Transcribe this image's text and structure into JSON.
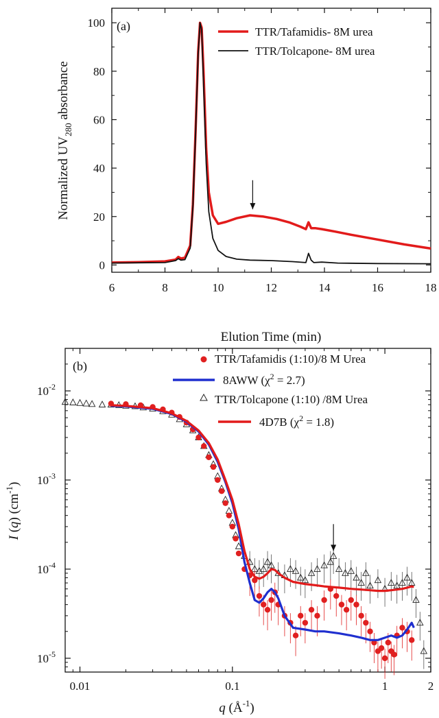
{
  "chart_data": [
    {
      "type": "line",
      "panel_label": "(a)",
      "xlabel": "Elution Time (min)",
      "ylabel": "Normalized UV280 absorbance",
      "ylabel_parts": {
        "base": "Normalized UV",
        "sub": "280",
        "rest": " absorbance"
      },
      "xlim": [
        6,
        18
      ],
      "ylim": [
        -3,
        106
      ],
      "x_ticks": [
        6,
        8,
        10,
        12,
        14,
        16,
        18
      ],
      "y_ticks": [
        0,
        20,
        40,
        60,
        80,
        100
      ],
      "grid": false,
      "legend_position": "top-right",
      "series": [
        {
          "name": "TTR/Tafamidis- 8M urea",
          "color": "#e21b1b",
          "x": [
            6.0,
            7.0,
            8.0,
            8.4,
            8.5,
            8.6,
            8.75,
            8.95,
            9.05,
            9.15,
            9.25,
            9.32,
            9.38,
            9.45,
            9.55,
            9.65,
            9.8,
            10.0,
            10.3,
            10.7,
            11.2,
            11.7,
            12.2,
            12.7,
            13.1,
            13.3,
            13.4,
            13.5,
            13.65,
            13.9,
            14.4,
            15.0,
            16.0,
            17.0,
            18.0
          ],
          "y": [
            1.0,
            1.2,
            1.5,
            2.2,
            3.3,
            2.7,
            3.0,
            8.0,
            25.0,
            55.0,
            88.0,
            100.0,
            98.0,
            80.0,
            48.0,
            30.0,
            20.5,
            17.0,
            17.8,
            19.3,
            20.5,
            20.0,
            19.0,
            17.5,
            15.8,
            14.8,
            17.6,
            15.2,
            15.2,
            14.8,
            13.8,
            12.5,
            10.5,
            8.5,
            6.8
          ]
        },
        {
          "name": "TTR/Tolcapone- 8M urea",
          "color": "#111111",
          "x": [
            6.0,
            7.0,
            8.0,
            8.4,
            8.5,
            8.6,
            8.75,
            8.95,
            9.05,
            9.15,
            9.25,
            9.32,
            9.38,
            9.45,
            9.55,
            9.65,
            9.8,
            10.0,
            10.3,
            10.7,
            11.2,
            12.0,
            12.8,
            13.3,
            13.4,
            13.5,
            13.6,
            13.9,
            14.5,
            16.0,
            18.0
          ],
          "y": [
            0.8,
            0.9,
            1.0,
            1.8,
            2.6,
            2.0,
            2.2,
            7.0,
            24.0,
            54.0,
            87.0,
            100.0,
            97.0,
            75.0,
            42.0,
            22.0,
            11.0,
            6.0,
            3.5,
            2.4,
            2.0,
            1.8,
            1.4,
            1.0,
            4.8,
            2.0,
            1.0,
            1.2,
            0.8,
            0.6,
            0.5
          ]
        }
      ],
      "annotations": [
        {
          "type": "arrow",
          "x": 11.3,
          "y_from": 35,
          "y_to": 23
        }
      ]
    },
    {
      "type": "scatter",
      "panel_label": "(b)",
      "xlabel": "q (Å⁻¹)",
      "xlabel_parts": {
        "var": "q",
        "rest": " (Å",
        "sup": "-1",
        "close": ")"
      },
      "ylabel": "I (q) (cm⁻¹)",
      "ylabel_parts": {
        "var": "I",
        "mid": " (",
        "var2": "q",
        "rest": ") (cm",
        "sup": "-1",
        "close": ")"
      },
      "x_scale": "log",
      "y_scale": "log",
      "xlim": [
        0.008,
        2.0
      ],
      "ylim": [
        7e-06,
        0.03
      ],
      "x_ticks": [
        0.01,
        0.1,
        1,
        2
      ],
      "x_tick_labels": [
        "0.01",
        "0.1",
        "1",
        "2"
      ],
      "y_ticks": [
        1e-05,
        0.0001,
        0.001,
        0.01
      ],
      "y_tick_labels": [
        {
          "base": "10",
          "sup": "-5"
        },
        {
          "base": "10",
          "sup": "-4"
        },
        {
          "base": "10",
          "sup": "-3"
        },
        {
          "base": "10",
          "sup": "-2"
        }
      ],
      "grid": false,
      "legend_position": "top-right",
      "series": [
        {
          "name": "TTR/Tafamidis (1:10)/8 M Urea",
          "marker": "filled-circle",
          "color": "#e02020",
          "x": [
            0.016,
            0.02,
            0.025,
            0.03,
            0.035,
            0.04,
            0.045,
            0.05,
            0.055,
            0.06,
            0.065,
            0.07,
            0.075,
            0.08,
            0.085,
            0.09,
            0.095,
            0.1,
            0.105,
            0.11,
            0.12,
            0.13,
            0.14,
            0.15,
            0.16,
            0.17,
            0.18,
            0.19,
            0.2,
            0.22,
            0.24,
            0.26,
            0.28,
            0.3,
            0.33,
            0.36,
            0.4,
            0.44,
            0.48,
            0.52,
            0.56,
            0.6,
            0.65,
            0.7,
            0.75,
            0.8,
            0.85,
            0.9,
            0.95,
            1.0,
            1.05,
            1.1,
            1.15,
            1.2,
            1.3,
            1.4,
            1.5
          ],
          "y": [
            0.0072,
            0.0071,
            0.0069,
            0.0066,
            0.0062,
            0.0057,
            0.0051,
            0.0044,
            0.0037,
            0.003,
            0.0024,
            0.0018,
            0.0014,
            0.001,
            0.00075,
            0.00055,
            0.0004,
            0.0003,
            0.00022,
            0.00015,
            0.0001,
            8.5e-05,
            7.5e-05,
            5e-05,
            4e-05,
            3.5e-05,
            4.5e-05,
            5.5e-05,
            4e-05,
            3e-05,
            2.5e-05,
            1.8e-05,
            3e-05,
            2.5e-05,
            3.5e-05,
            3e-05,
            4.5e-05,
            6e-05,
            5e-05,
            4e-05,
            3.5e-05,
            4.5e-05,
            4e-05,
            3e-05,
            2.5e-05,
            2e-05,
            1.5e-05,
            1.2e-05,
            1.3e-05,
            1e-05,
            1.5e-05,
            1.2e-05,
            1.1e-05,
            1.8e-05,
            2.2e-05,
            2e-05,
            1.6e-05
          ]
        },
        {
          "name": "8AWW (χ² = 2.7)",
          "name_parts": {
            "base": "8AWW (χ",
            "sup": "2",
            "rest": " = 2.7)"
          },
          "color": "#1f2fcf",
          "x": [
            0.016,
            0.02,
            0.03,
            0.04,
            0.05,
            0.06,
            0.07,
            0.08,
            0.09,
            0.1,
            0.11,
            0.12,
            0.13,
            0.14,
            0.15,
            0.16,
            0.17,
            0.18,
            0.19,
            0.2,
            0.22,
            0.25,
            0.3,
            0.35,
            0.4,
            0.5,
            0.6,
            0.7,
            0.8,
            0.9,
            1.0,
            1.1,
            1.2,
            1.3,
            1.4,
            1.5,
            1.55
          ],
          "y": [
            0.0068,
            0.0067,
            0.0063,
            0.0055,
            0.0045,
            0.0035,
            0.0025,
            0.0016,
            0.00095,
            0.00055,
            0.00028,
            0.00012,
            7e-05,
            4.5e-05,
            4.2e-05,
            4.7e-05,
            5.5e-05,
            6e-05,
            5.5e-05,
            4.7e-05,
            3e-05,
            2.2e-05,
            2.1e-05,
            2e-05,
            2e-05,
            1.9e-05,
            1.8e-05,
            1.7e-05,
            1.6e-05,
            1.6e-05,
            1.7e-05,
            1.8e-05,
            1.7e-05,
            1.8e-05,
            2.1e-05,
            2.5e-05,
            2.2e-05
          ]
        },
        {
          "name": "TTR/Tolcapone (1:10) /8M Urea",
          "marker": "open-triangle",
          "color": "#222222",
          "x": [
            0.008,
            0.009,
            0.01,
            0.011,
            0.012,
            0.014,
            0.016,
            0.018,
            0.02,
            0.023,
            0.026,
            0.03,
            0.035,
            0.04,
            0.045,
            0.05,
            0.055,
            0.06,
            0.065,
            0.07,
            0.075,
            0.08,
            0.085,
            0.09,
            0.095,
            0.1,
            0.105,
            0.11,
            0.12,
            0.13,
            0.14,
            0.15,
            0.16,
            0.17,
            0.18,
            0.2,
            0.22,
            0.24,
            0.26,
            0.28,
            0.3,
            0.33,
            0.36,
            0.4,
            0.44,
            0.46,
            0.5,
            0.55,
            0.6,
            0.65,
            0.7,
            0.75,
            0.8,
            0.9,
            1.0,
            1.1,
            1.2,
            1.3,
            1.4,
            1.5,
            1.6,
            1.7,
            1.8
          ],
          "y": [
            0.0075,
            0.0074,
            0.0073,
            0.0072,
            0.0071,
            0.007,
            0.007,
            0.0069,
            0.0068,
            0.0067,
            0.0065,
            0.0063,
            0.0059,
            0.0054,
            0.0048,
            0.0042,
            0.0036,
            0.003,
            0.0024,
            0.0019,
            0.0015,
            0.0011,
            0.0008,
            0.0006,
            0.00045,
            0.00033,
            0.00024,
            0.00018,
            0.00014,
            0.00012,
            0.0001,
            9.5e-05,
            0.0001,
            0.00012,
            0.00011,
            9e-05,
            8.5e-05,
            0.0001,
            9.5e-05,
            8e-05,
            7.5e-05,
            9e-05,
            0.0001,
            0.00011,
            0.00012,
            0.00014,
            0.0001,
            9e-05,
            9.5e-05,
            8e-05,
            7e-05,
            9e-05,
            6.5e-05,
            7.5e-05,
            6e-05,
            7e-05,
            6.5e-05,
            7e-05,
            8e-05,
            7e-05,
            4.5e-05,
            2.5e-05,
            1.2e-05
          ]
        },
        {
          "name": "4D7B (χ² = 1.8)",
          "name_parts": {
            "base": "4D7B (χ",
            "sup": "2",
            "rest": " = 1.8)"
          },
          "color": "#e21b1b",
          "x": [
            0.016,
            0.02,
            0.03,
            0.04,
            0.05,
            0.06,
            0.07,
            0.08,
            0.09,
            0.1,
            0.11,
            0.12,
            0.13,
            0.14,
            0.15,
            0.16,
            0.17,
            0.18,
            0.19,
            0.2,
            0.22,
            0.25,
            0.3,
            0.35,
            0.4,
            0.5,
            0.6,
            0.7,
            0.8,
            0.9,
            1.0,
            1.1,
            1.2,
            1.3,
            1.4,
            1.5,
            1.55
          ],
          "y": [
            0.0069,
            0.0068,
            0.0064,
            0.0056,
            0.0046,
            0.0036,
            0.0026,
            0.0017,
            0.001,
            0.0006,
            0.00032,
            0.00016,
            0.0001,
            8.2e-05,
            7.8e-05,
            8.2e-05,
            9e-05,
            0.0001,
            9.8e-05,
            9e-05,
            8e-05,
            7.2e-05,
            6.8e-05,
            6.6e-05,
            6.4e-05,
            6.2e-05,
            6e-05,
            5.9e-05,
            5.8e-05,
            5.7e-05,
            5.7e-05,
            5.8e-05,
            5.9e-05,
            6e-05,
            6.2e-05,
            6.4e-05,
            6.3e-05
          ]
        }
      ],
      "annotations": [
        {
          "type": "arrow",
          "x": 0.46,
          "y_from": 0.00032,
          "y_to": 0.00016
        }
      ]
    }
  ]
}
